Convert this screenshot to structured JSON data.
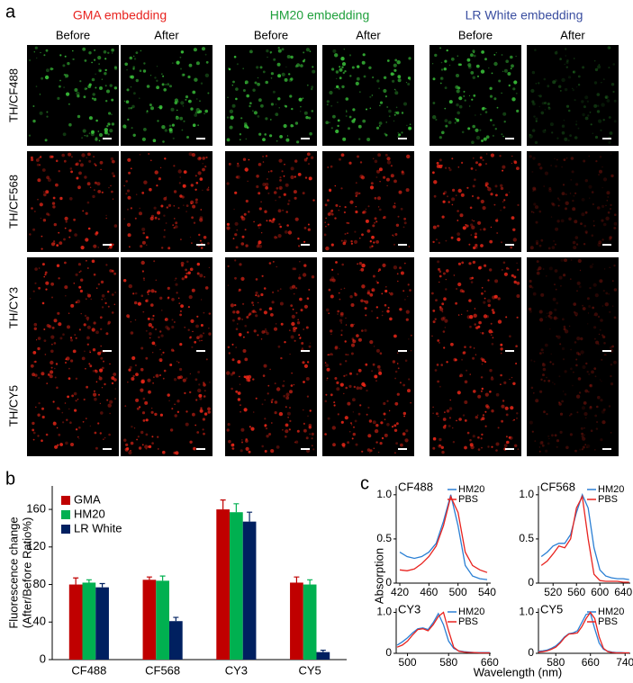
{
  "panel_labels": [
    "a",
    "b",
    "c"
  ],
  "panel_a": {
    "groups": [
      {
        "title": "GMA embedding",
        "color": "#e8231f",
        "columns": [
          "Before",
          "After"
        ]
      },
      {
        "title": "HM20 embedding",
        "color": "#1fa03c",
        "columns": [
          "Before",
          "After"
        ]
      },
      {
        "title": "LR White embedding",
        "color": "#3a4ea0",
        "columns": [
          "Before",
          "After"
        ]
      }
    ],
    "rows": [
      "TH/CF488",
      "TH/CF568",
      "TH/CY3",
      "TH/CY5"
    ]
  },
  "panel_c": {
    "ylabel": "Absorption",
    "xlabel": "Wavelength (nm)"
  },
  "chart_data": [
    {
      "type": "bar",
      "ylabel": [
        "Fluorescence change",
        "(After/Before Ratio%)"
      ],
      "categories": [
        "CF488",
        "CF568",
        "CY3",
        "CY5"
      ],
      "series": [
        {
          "name": "GMA",
          "color": "#c00000",
          "values": [
            80,
            85,
            160,
            82
          ],
          "errors": [
            7,
            3,
            10,
            6
          ]
        },
        {
          "name": "HM20",
          "color": "#00b050",
          "values": [
            82,
            84,
            157,
            80
          ],
          "errors": [
            3,
            5,
            9,
            5
          ]
        },
        {
          "name": "LR White",
          "color": "#002060",
          "values": [
            77,
            41,
            147,
            8
          ],
          "errors": [
            4,
            4,
            10,
            2
          ]
        }
      ],
      "ylim": [
        0,
        185
      ],
      "yticks": [
        0,
        40,
        80,
        120,
        160
      ],
      "legend": "upper left"
    },
    {
      "type": "line",
      "title": "CF488",
      "x": [
        420,
        430,
        440,
        450,
        460,
        470,
        480,
        490,
        500,
        510,
        520,
        530,
        540
      ],
      "series": [
        {
          "name": "HM20",
          "color": "#2a7fd4",
          "values": [
            0.35,
            0.3,
            0.28,
            0.3,
            0.35,
            0.45,
            0.7,
            1.0,
            0.65,
            0.2,
            0.08,
            0.05,
            0.04
          ]
        },
        {
          "name": "PBS",
          "color": "#e8231f",
          "values": [
            0.15,
            0.14,
            0.16,
            0.22,
            0.3,
            0.42,
            0.65,
            0.98,
            0.8,
            0.35,
            0.2,
            0.15,
            0.12
          ]
        }
      ],
      "xlim": [
        415,
        545
      ],
      "xticks": [
        420,
        460,
        500,
        540
      ],
      "ylim": [
        0,
        1.1
      ],
      "yticks": [
        0,
        0.5,
        {
          "value": 1,
          "label": "1.0"
        }
      ],
      "legend": "upper right"
    },
    {
      "type": "line",
      "title": "CF568",
      "x": [
        500,
        510,
        520,
        530,
        540,
        550,
        560,
        570,
        580,
        590,
        600,
        610,
        620,
        630,
        640,
        650
      ],
      "series": [
        {
          "name": "HM20",
          "color": "#2a7fd4",
          "values": [
            0.3,
            0.35,
            0.42,
            0.45,
            0.45,
            0.55,
            0.8,
            1.0,
            0.85,
            0.4,
            0.15,
            0.08,
            0.06,
            0.05,
            0.05,
            0.04
          ]
        },
        {
          "name": "PBS",
          "color": "#e8231f",
          "values": [
            0.2,
            0.25,
            0.33,
            0.42,
            0.4,
            0.5,
            0.85,
            0.98,
            0.5,
            0.1,
            0.03,
            0.02,
            0.02,
            0.02,
            0.01,
            0.01
          ]
        }
      ],
      "xlim": [
        495,
        652
      ],
      "xticks": [
        520,
        560,
        600,
        640
      ],
      "ylim": [
        0,
        1.1
      ],
      "yticks": [
        0,
        0.5,
        {
          "value": 1,
          "label": "1.0"
        }
      ],
      "legend": "upper right"
    },
    {
      "type": "line",
      "title": "CY3",
      "x": [
        480,
        490,
        500,
        510,
        520,
        530,
        540,
        550,
        560,
        570,
        580,
        590,
        600,
        610,
        620,
        630,
        640,
        650,
        660
      ],
      "series": [
        {
          "name": "HM20",
          "color": "#2a7fd4",
          "values": [
            0.2,
            0.28,
            0.38,
            0.5,
            0.6,
            0.62,
            0.58,
            0.75,
            0.97,
            0.7,
            0.3,
            0.12,
            0.06,
            0.04,
            0.03,
            0.02,
            0.02,
            0.02,
            0.02
          ]
        },
        {
          "name": "PBS",
          "color": "#e8231f",
          "values": [
            0.15,
            0.2,
            0.3,
            0.45,
            0.58,
            0.6,
            0.55,
            0.7,
            0.9,
            1.0,
            0.55,
            0.15,
            0.05,
            0.03,
            0.02,
            0.02,
            0.01,
            0.01,
            0.01
          ]
        }
      ],
      "xlim": [
        478,
        662
      ],
      "xticks": [
        500,
        580,
        660
      ],
      "ylim": [
        0,
        1.1
      ],
      "yticks": [
        0,
        {
          "value": 1,
          "label": "1.0"
        }
      ],
      "legend": "upper right"
    },
    {
      "type": "line",
      "title": "CY5",
      "x": [
        540,
        550,
        560,
        570,
        580,
        590,
        600,
        610,
        620,
        630,
        640,
        650,
        660,
        670,
        680,
        690,
        700,
        710,
        720,
        730,
        740,
        750
      ],
      "series": [
        {
          "name": "HM20",
          "color": "#2a7fd4",
          "values": [
            0.05,
            0.06,
            0.08,
            0.12,
            0.18,
            0.28,
            0.4,
            0.48,
            0.5,
            0.55,
            0.75,
            0.95,
            0.98,
            0.6,
            0.25,
            0.1,
            0.05,
            0.03,
            0.02,
            0.02,
            0.01,
            0.01
          ]
        },
        {
          "name": "PBS",
          "color": "#e8231f",
          "values": [
            0.03,
            0.04,
            0.06,
            0.1,
            0.15,
            0.25,
            0.38,
            0.47,
            0.48,
            0.5,
            0.65,
            0.85,
            1.0,
            0.85,
            0.4,
            0.12,
            0.04,
            0.02,
            0.01,
            0.01,
            0.01,
            0.01
          ]
        }
      ],
      "xlim": [
        540,
        752
      ],
      "xticks": [
        580,
        660,
        740
      ],
      "ylim": [
        0,
        1.1
      ],
      "yticks": [
        0,
        {
          "value": 1,
          "label": "1.0"
        }
      ],
      "legend": "upper right"
    }
  ]
}
